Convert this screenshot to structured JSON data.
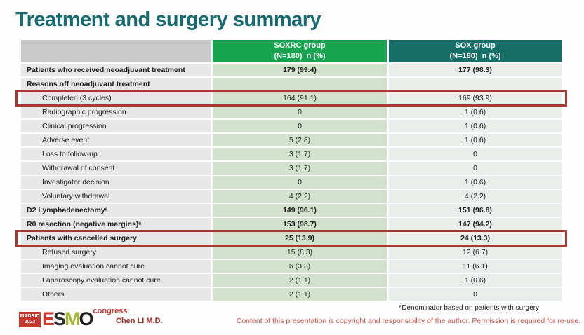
{
  "slide": {
    "title": "Treatment and surgery summary"
  },
  "table": {
    "columns": [
      {
        "line1": "SOXRC group",
        "line2": "(N=180)  n (%)"
      },
      {
        "line1": "SOX group",
        "line2": "(N=180)  n (%)"
      }
    ],
    "rows": [
      {
        "label": "Patients who received neoadjuvant treatment",
        "soxrc": "179 (99.4)",
        "sox": "177 (98.3)",
        "bold": true,
        "indent": false,
        "highlight": false
      },
      {
        "label": "Reasons off neoadjuvant treatment",
        "soxrc": "",
        "sox": "",
        "bold": true,
        "indent": false,
        "highlight": false
      },
      {
        "label": "Completed (3 cycles)",
        "soxrc": "164 (91.1)",
        "sox": "169 (93.9)",
        "bold": false,
        "indent": true,
        "highlight": true
      },
      {
        "label": "Radiographic progression",
        "soxrc": "0",
        "sox": "1 (0.6)",
        "bold": false,
        "indent": true,
        "highlight": false
      },
      {
        "label": "Clinical progression",
        "soxrc": "0",
        "sox": "1 (0.6)",
        "bold": false,
        "indent": true,
        "highlight": false
      },
      {
        "label": "Adverse event",
        "soxrc": "5 (2.8)",
        "sox": "1 (0.6)",
        "bold": false,
        "indent": true,
        "highlight": false
      },
      {
        "label": "Loss to follow-up",
        "soxrc": "3 (1.7)",
        "sox": "0",
        "bold": false,
        "indent": true,
        "highlight": false
      },
      {
        "label": "Withdrawal of consent",
        "soxrc": "3 (1.7)",
        "sox": "0",
        "bold": false,
        "indent": true,
        "highlight": false
      },
      {
        "label": "Investigator decision",
        "soxrc": "0",
        "sox": "1 (0.6)",
        "bold": false,
        "indent": true,
        "highlight": false
      },
      {
        "label": "Voluntary withdrawal",
        "soxrc": "4 (2.2)",
        "sox": "4 (2.2)",
        "bold": false,
        "indent": true,
        "highlight": false
      },
      {
        "label": "D2 Lymphadenectomyᵃ",
        "soxrc": "149 (96.1)",
        "sox": "151 (96.8)",
        "bold": true,
        "indent": false,
        "highlight": false
      },
      {
        "label": "R0 resection (negative margins)ᵃ",
        "soxrc": "153 (98.7)",
        "sox": "147 (94.2)",
        "bold": true,
        "indent": false,
        "highlight": false
      },
      {
        "label": "Patients with cancelled surgery",
        "soxrc": "25 (13.9)",
        "sox": "24 (13.3)",
        "bold": true,
        "indent": false,
        "highlight": true
      },
      {
        "label": "Refused surgery",
        "soxrc": "15 (8.3)",
        "sox": "12 (6.7)",
        "bold": false,
        "indent": true,
        "highlight": false
      },
      {
        "label": "Imaging evaluation cannot cure",
        "soxrc": "6 (3.3)",
        "sox": "11 (6.1)",
        "bold": false,
        "indent": true,
        "highlight": false
      },
      {
        "label": "Laparoscopy evaluation cannot cure",
        "soxrc": "2 (1.1)",
        "sox": "1 (0.6)",
        "bold": false,
        "indent": true,
        "highlight": false
      },
      {
        "label": "Others",
        "soxrc": "2 (1.1)",
        "sox": "0",
        "bold": false,
        "indent": true,
        "highlight": false
      }
    ]
  },
  "footer": {
    "footnote": "ᵃDenominator based on patients with surgery",
    "copyright": "Content of this presentation is copyright and responsibility of the author.  Permission is required for re-use.",
    "author": "Chen LI M.D.",
    "logo": {
      "badge_line1": "MADRID",
      "badge_line2": "2023",
      "letters": [
        "E",
        "S",
        "M",
        "O"
      ],
      "congress": "congress"
    }
  },
  "colors": {
    "title-teal": "#17696e",
    "header-gray": "#c9c9c9",
    "header-green": "#17a34f",
    "header-teal": "#156f68",
    "row-label-bg": "#e7e7e7",
    "row-soxrc-bg": "#d3e2cd",
    "row-sox-bg": "#e9eeea",
    "highlight-red": "#a63a32",
    "copyright-red": "#c9544c",
    "author-red": "#9e2b25",
    "logo-red": "#c6382f"
  }
}
